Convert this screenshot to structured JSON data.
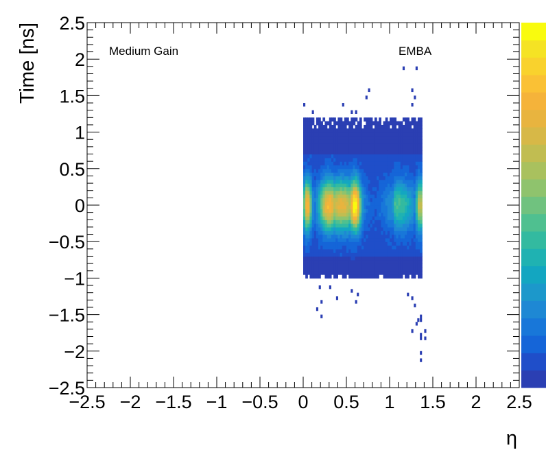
{
  "chart_data": {
    "type": "heatmap",
    "title": "",
    "xlabel": "η",
    "ylabel": "Time [ns]",
    "xlim": [
      -2.5,
      2.5
    ],
    "ylim": [
      -2.5,
      2.5
    ],
    "x_ticks": [
      "−2.5",
      "−2",
      "−1.5",
      "−1",
      "−0.5",
      "0",
      "0.5",
      "1",
      "1.5",
      "2",
      "2.5"
    ],
    "y_ticks": [
      "−2.5",
      "−2",
      "−1.5",
      "−1",
      "−0.5",
      "0",
      "0.5",
      "1",
      "1.5",
      "2",
      "2.5"
    ],
    "annotations": [
      "Medium Gain",
      "EMBA"
    ],
    "bin_width_eta": 0.025,
    "bin_width_time": 0.05,
    "core_region": {
      "eta_range": [
        0.0,
        1.375
      ],
      "time_range": [
        -1.0,
        1.2
      ],
      "peak_time": 0.0,
      "peak_etas": [
        0.05,
        0.3,
        0.6,
        1.35
      ],
      "gap_eta": [
        0.82,
        1.05
      ]
    },
    "outlier_bins": [
      [
        1.15,
        1.85
      ],
      [
        1.3,
        1.85
      ],
      [
        1.25,
        1.55
      ],
      [
        0.75,
        1.55
      ],
      [
        0.72,
        1.45
      ],
      [
        1.28,
        1.45
      ],
      [
        0.0,
        1.35
      ],
      [
        0.45,
        1.35
      ],
      [
        1.25,
        1.35
      ],
      [
        0.1,
        1.25
      ],
      [
        0.55,
        1.25
      ],
      [
        0.6,
        1.25
      ],
      [
        0.18,
        -1.15
      ],
      [
        0.3,
        -1.15
      ],
      [
        0.55,
        -1.2
      ],
      [
        0.62,
        -1.25
      ],
      [
        1.2,
        -1.25
      ],
      [
        1.25,
        -1.3
      ],
      [
        0.2,
        -1.35
      ],
      [
        0.38,
        -1.3
      ],
      [
        0.6,
        -1.35
      ],
      [
        1.28,
        -1.4
      ],
      [
        1.32,
        -1.6
      ],
      [
        0.15,
        -1.45
      ],
      [
        0.2,
        -1.55
      ],
      [
        1.35,
        -1.6
      ],
      [
        1.35,
        -1.55
      ],
      [
        1.3,
        -1.65
      ],
      [
        1.25,
        -1.75
      ],
      [
        1.35,
        -1.8
      ],
      [
        1.35,
        -1.85
      ],
      [
        1.4,
        -1.75
      ],
      [
        1.4,
        -1.85
      ],
      [
        1.35,
        -2.05
      ],
      [
        1.35,
        -2.15
      ]
    ],
    "colorbar_colors": [
      "#2b3fb3",
      "#1f4ec9",
      "#1565d8",
      "#1877d9",
      "#1e88d4",
      "#1c98cb",
      "#13a6c1",
      "#1fb2b2",
      "#33baa0",
      "#4fc090",
      "#70c27f",
      "#8fc36d",
      "#a9c15e",
      "#c1bd51",
      "#d7b847",
      "#e8b43f",
      "#f5b33a",
      "#fac135",
      "#f9d22d",
      "#f5e324",
      "#f9fb0e"
    ]
  }
}
